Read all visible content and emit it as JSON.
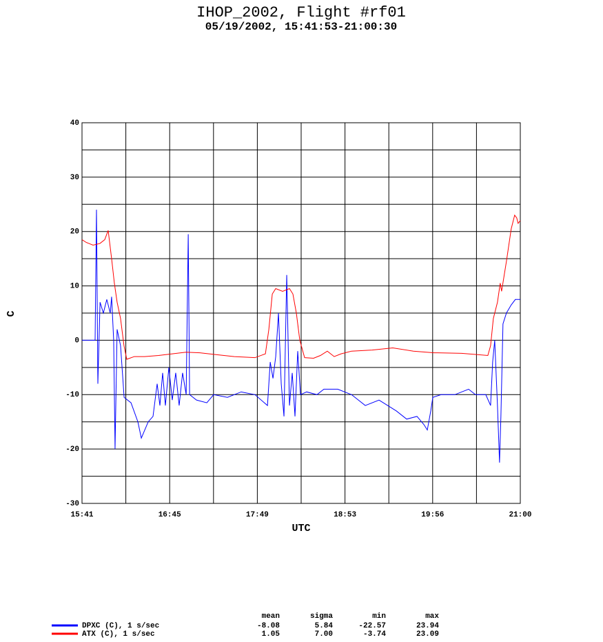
{
  "chart_data": {
    "type": "line",
    "title": "IHOP_2002, Flight #rf01",
    "subtitle": "05/19/2002, 15:41:53-21:00:30",
    "x_label": "UTC",
    "y_label": "C",
    "xlim": [
      941.88,
      1260.5
    ],
    "ylim": [
      -30,
      40
    ],
    "grid": true,
    "xticks": [
      {
        "value": 941.88,
        "label": "15:41"
      },
      {
        "value": 973.74,
        "label": null
      },
      {
        "value": 1005.61,
        "label": "16:45"
      },
      {
        "value": 1037.47,
        "label": null
      },
      {
        "value": 1069.33,
        "label": "17:49"
      },
      {
        "value": 1101.19,
        "label": null
      },
      {
        "value": 1133.06,
        "label": "18:53"
      },
      {
        "value": 1164.92,
        "label": null
      },
      {
        "value": 1196.78,
        "label": "19:56"
      },
      {
        "value": 1228.64,
        "label": null
      },
      {
        "value": 1260.5,
        "label": "21:00"
      }
    ],
    "yticks": [
      40,
      {
        "value": 35,
        "label": null
      },
      30,
      {
        "value": 25,
        "label": null
      },
      20,
      {
        "value": 15,
        "label": null
      },
      10,
      {
        "value": 5,
        "label": null
      },
      0,
      {
        "value": -5,
        "label": null
      },
      -10,
      {
        "value": -15,
        "label": null
      },
      -20,
      {
        "value": -25,
        "label": null
      },
      -30
    ],
    "series": [
      {
        "name": "DPXC (C), 1 s/sec",
        "color": "#0000ff",
        "x": [
          941.9,
          951.4,
          952.4,
          953.4,
          955.0,
          957.4,
          959.9,
          962.4,
          963.4,
          964.9,
          965.9,
          967.4,
          969.9,
          972.5,
          977.5,
          982.5,
          985.0,
          990.0,
          993.5,
          996.5,
          998.5,
          1000.5,
          1002.5,
          1005.0,
          1007.5,
          1010.0,
          1012.5,
          1015.0,
          1017.6,
          1019.1,
          1020.1,
          1025.1,
          1032.6,
          1037.6,
          1047.6,
          1057.6,
          1067.6,
          1076.7,
          1078.7,
          1080.7,
          1082.7,
          1084.7,
          1086.7,
          1088.7,
          1090.7,
          1092.7,
          1094.7,
          1096.7,
          1098.7,
          1100.7,
          1105.2,
          1112.7,
          1117.7,
          1127.8,
          1137.8,
          1147.8,
          1157.8,
          1170.4,
          1177.9,
          1185.4,
          1190.4,
          1192.9,
          1195.4,
          1196.9,
          1202.9,
          1212.9,
          1222.9,
          1227.9,
          1235.4,
          1238.9,
          1240.4,
          1241.9,
          1243.9,
          1245.4,
          1246.4,
          1247.9,
          1250.4,
          1253.9,
          1256.9,
          1260.5
        ],
        "values": [
          0,
          0,
          24,
          -8,
          7,
          5,
          7.5,
          5,
          8,
          0,
          -20,
          2,
          -1,
          -10.5,
          -11.5,
          -15,
          -18,
          -15,
          -14,
          -8,
          -12,
          -6,
          -12,
          -5,
          -11,
          -6,
          -12,
          -6,
          -10,
          19.5,
          -10,
          -11,
          -11.5,
          -10,
          -10.5,
          -9.5,
          -10,
          -12,
          -4,
          -7,
          -3,
          5,
          -8,
          -14,
          12,
          -12,
          -6,
          -14,
          -2,
          -10,
          -9.5,
          -10,
          -9,
          -9,
          -10,
          -12,
          -11,
          -13,
          -14.5,
          -14,
          -15.5,
          -16.5,
          -13,
          -10.5,
          -10,
          -10,
          -9,
          -10,
          -10,
          -12,
          -4,
          0,
          -12,
          -22.5,
          -14,
          3,
          5,
          6.5,
          7.5,
          7.5
        ]
      },
      {
        "name": "ATX (C), 1 s/sec",
        "color": "#ff0000",
        "x": [
          941.9,
          944.9,
          949.9,
          954.9,
          958.4,
          960.9,
          963.4,
          965.4,
          967.4,
          969.9,
          972.4,
          974.4,
          979.9,
          987.4,
          997.5,
          1007.5,
          1017.5,
          1027.6,
          1037.6,
          1052.6,
          1067.6,
          1075.2,
          1077.7,
          1080.2,
          1082.7,
          1087.7,
          1092.7,
          1095.2,
          1097.7,
          1100.2,
          1103.7,
          1110.2,
          1115.2,
          1120.2,
          1125.2,
          1130.2,
          1137.8,
          1152.8,
          1167.8,
          1182.8,
          1197.9,
          1217.9,
          1236.9,
          1238.9,
          1240.9,
          1243.9,
          1245.9,
          1246.9,
          1250.4,
          1253.9,
          1256.4,
          1257.9,
          1258.9,
          1260.5
        ],
        "values": [
          18.5,
          18,
          17.5,
          17.8,
          18.5,
          20.2,
          15,
          10.5,
          7,
          4,
          -1,
          -3.5,
          -3,
          -3,
          -2.8,
          -2.5,
          -2.2,
          -2.3,
          -2.6,
          -3,
          -3.2,
          -2.5,
          2,
          8.5,
          9.5,
          9,
          9.5,
          8.5,
          5,
          0,
          -3.2,
          -3.3,
          -2.8,
          -2,
          -3,
          -2.5,
          -2,
          -1.8,
          -1.4,
          -2,
          -2.3,
          -2.4,
          -2.8,
          -1,
          4,
          7,
          10.5,
          9,
          14.5,
          20.5,
          23,
          22.5,
          21.5,
          22
        ]
      }
    ],
    "stats": {
      "columns": [
        "mean",
        "sigma",
        "min",
        "max"
      ],
      "rows": [
        [
          "-8.08",
          "5.84",
          "-22.57",
          "23.94"
        ],
        [
          "1.05",
          "7.00",
          "-3.74",
          "23.09"
        ]
      ]
    }
  }
}
